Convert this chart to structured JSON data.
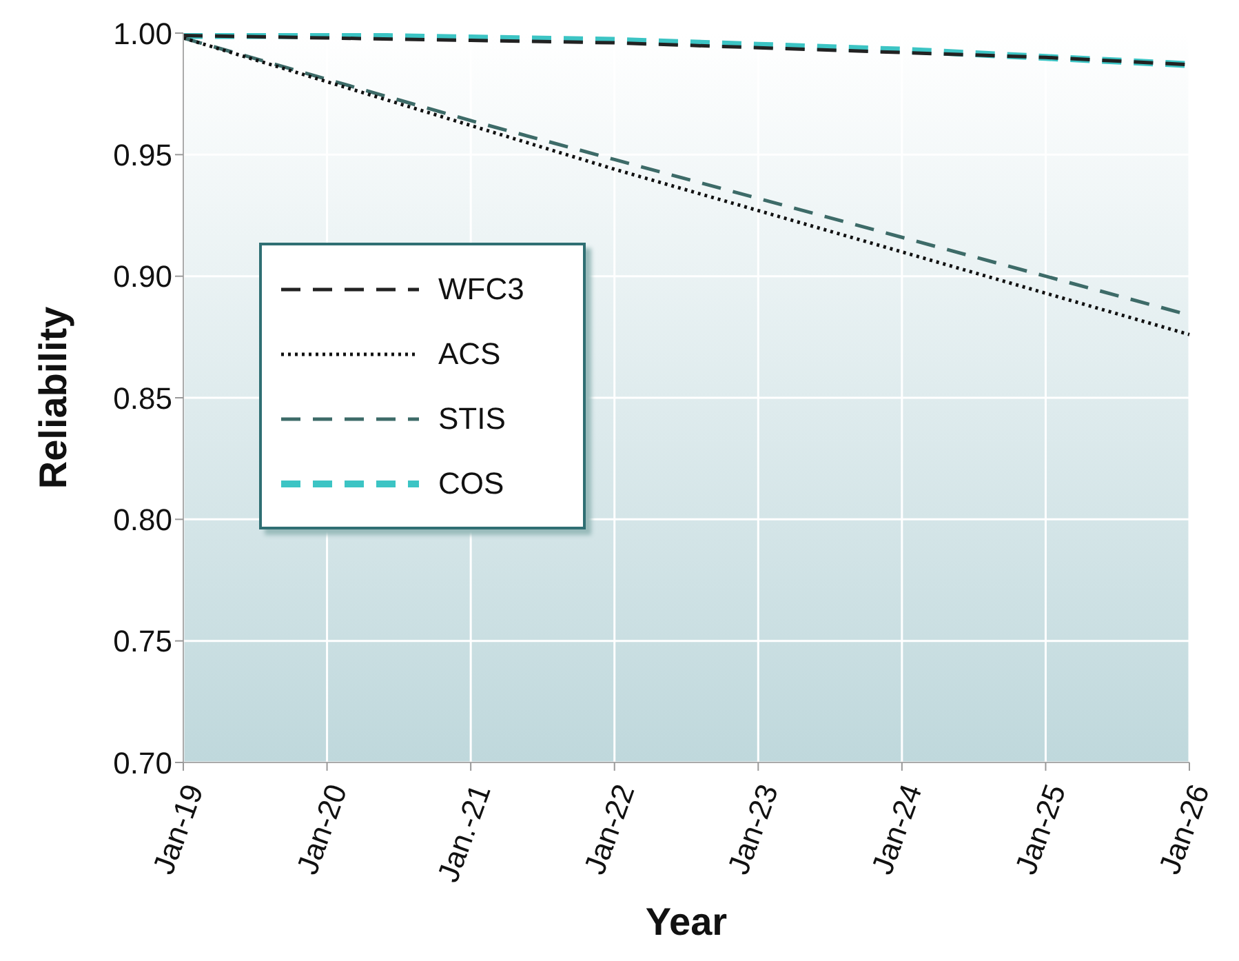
{
  "chart_data": {
    "type": "line",
    "xlabel": "Year",
    "ylabel": "Reliability",
    "categories": [
      "Jan-19",
      "Jan-20",
      "Jan.-21",
      "Jan-22",
      "Jan-23",
      "Jan-24",
      "Jan-25",
      "Jan-26"
    ],
    "series": [
      {
        "name": "WFC3",
        "color": "#222222",
        "line_style": "dashed",
        "values": [
          0.999,
          0.998,
          0.997,
          0.996,
          0.994,
          0.992,
          0.99,
          0.987
        ]
      },
      {
        "name": "ACS",
        "color": "#111111",
        "line_style": "dotted",
        "values": [
          0.998,
          0.98,
          0.962,
          0.944,
          0.927,
          0.91,
          0.893,
          0.876
        ]
      },
      {
        "name": "STIS",
        "color": "#3d6b68",
        "line_style": "dashed",
        "values": [
          0.998,
          0.981,
          0.964,
          0.948,
          0.932,
          0.916,
          0.9,
          0.884
        ]
      },
      {
        "name": "COS",
        "color": "#3cc4c4",
        "line_style": "dashed",
        "values": [
          0.999,
          0.999,
          0.998,
          0.997,
          0.995,
          0.993,
          0.99,
          0.987
        ]
      }
    ],
    "ylim": [
      0.7,
      1.0
    ],
    "yticks": [
      {
        "value": 0.7,
        "label": "0.70"
      },
      {
        "value": 0.75,
        "label": "0.75"
      },
      {
        "value": 0.8,
        "label": "0.80"
      },
      {
        "value": 0.85,
        "label": "0.85"
      },
      {
        "value": 0.9,
        "label": "0.90"
      },
      {
        "value": 0.95,
        "label": "0.95"
      },
      {
        "value": 1.0,
        "label": "1.00"
      }
    ],
    "grid": true,
    "legend": "top left",
    "marker": "none"
  }
}
